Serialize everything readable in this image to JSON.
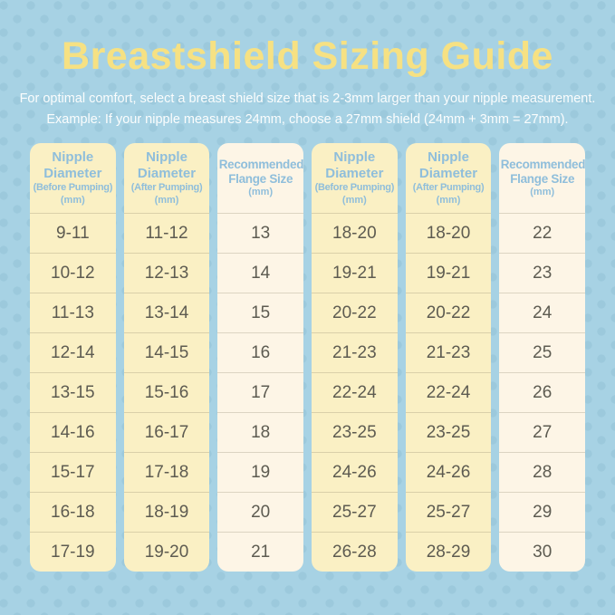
{
  "title": "Breastshield Sizing Guide",
  "subtitle": {
    "line1": "For optimal comfort, select a breast shield size that is 2-3mm larger than your nipple measurement.",
    "line2": "Example: If your nipple measures 24mm, choose a 27mm shield (24mm + 3mm = 27mm)."
  },
  "colors": {
    "background_blue": "#a7d2e4",
    "dot_blue": "#9cc9dc",
    "title_yellow": "#f6e183",
    "subtitle_white": "#fbfdfd",
    "column_yellow": "#faf0c4",
    "column_cream": "#fdf5e6",
    "header_text_blue": "#8fbedb",
    "cell_text": "#5d5b51"
  },
  "table": {
    "columns": [
      {
        "style": "yellow",
        "header_title": "Nipple Diameter",
        "header_sub": "(Before Pumping)",
        "header_unit": "(mm)",
        "values": [
          "9-11",
          "10-12",
          "11-13",
          "12-14",
          "13-15",
          "14-16",
          "15-17",
          "16-18",
          "17-19"
        ]
      },
      {
        "style": "yellow",
        "header_title": "Nipple Diameter",
        "header_sub": "(After Pumping)",
        "header_unit": "(mm)",
        "values": [
          "11-12",
          "12-13",
          "13-14",
          "14-15",
          "15-16",
          "16-17",
          "17-18",
          "18-19",
          "19-20"
        ]
      },
      {
        "style": "cream",
        "header_title": "Recommended Flange Size",
        "header_sub": "",
        "header_unit": "(mm)",
        "values": [
          "13",
          "14",
          "15",
          "16",
          "17",
          "18",
          "19",
          "20",
          "21"
        ]
      },
      {
        "style": "yellow",
        "header_title": "Nipple Diameter",
        "header_sub": "(Before Pumping)",
        "header_unit": "(mm)",
        "values": [
          "18-20",
          "19-21",
          "20-22",
          "21-23",
          "22-24",
          "23-25",
          "24-26",
          "25-27",
          "26-28"
        ]
      },
      {
        "style": "yellow",
        "header_title": "Nipple Diameter",
        "header_sub": "(After Pumping)",
        "header_unit": "(mm)",
        "values": [
          "18-20",
          "19-21",
          "20-22",
          "21-23",
          "22-24",
          "23-25",
          "24-26",
          "25-27",
          "28-29"
        ]
      },
      {
        "style": "cream",
        "header_title": "Recommended Flange Size",
        "header_sub": "",
        "header_unit": "(mm)",
        "values": [
          "22",
          "23",
          "24",
          "25",
          "26",
          "27",
          "28",
          "29",
          "30"
        ]
      }
    ]
  }
}
